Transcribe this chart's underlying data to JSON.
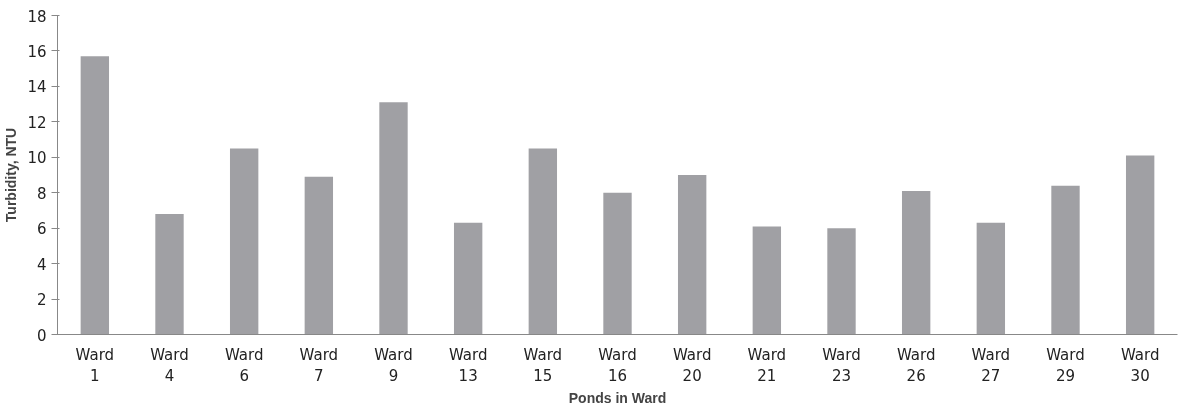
{
  "chart_data": {
    "type": "bar",
    "xlabel": "Ponds in Ward",
    "ylabel": "Turbidity, NTU",
    "categories": [
      "Ward 1",
      "Ward 4",
      "Ward 6",
      "Ward 7",
      "Ward 9",
      "Ward 13",
      "Ward 15",
      "Ward 16",
      "Ward 20",
      "Ward 21",
      "Ward 23",
      "Ward 26",
      "Ward 27",
      "Ward 29",
      "Ward 30"
    ],
    "values": [
      15.7,
      6.8,
      10.5,
      8.9,
      13.1,
      6.3,
      10.5,
      8.0,
      9.0,
      6.1,
      6.0,
      8.1,
      6.3,
      8.4,
      10.1
    ],
    "color": "#a0a0a4",
    "ylim": [
      0,
      18
    ],
    "yticks": [
      0,
      2,
      4,
      6,
      8,
      10,
      12,
      14,
      16,
      18
    ],
    "grid": false,
    "legend": false
  }
}
